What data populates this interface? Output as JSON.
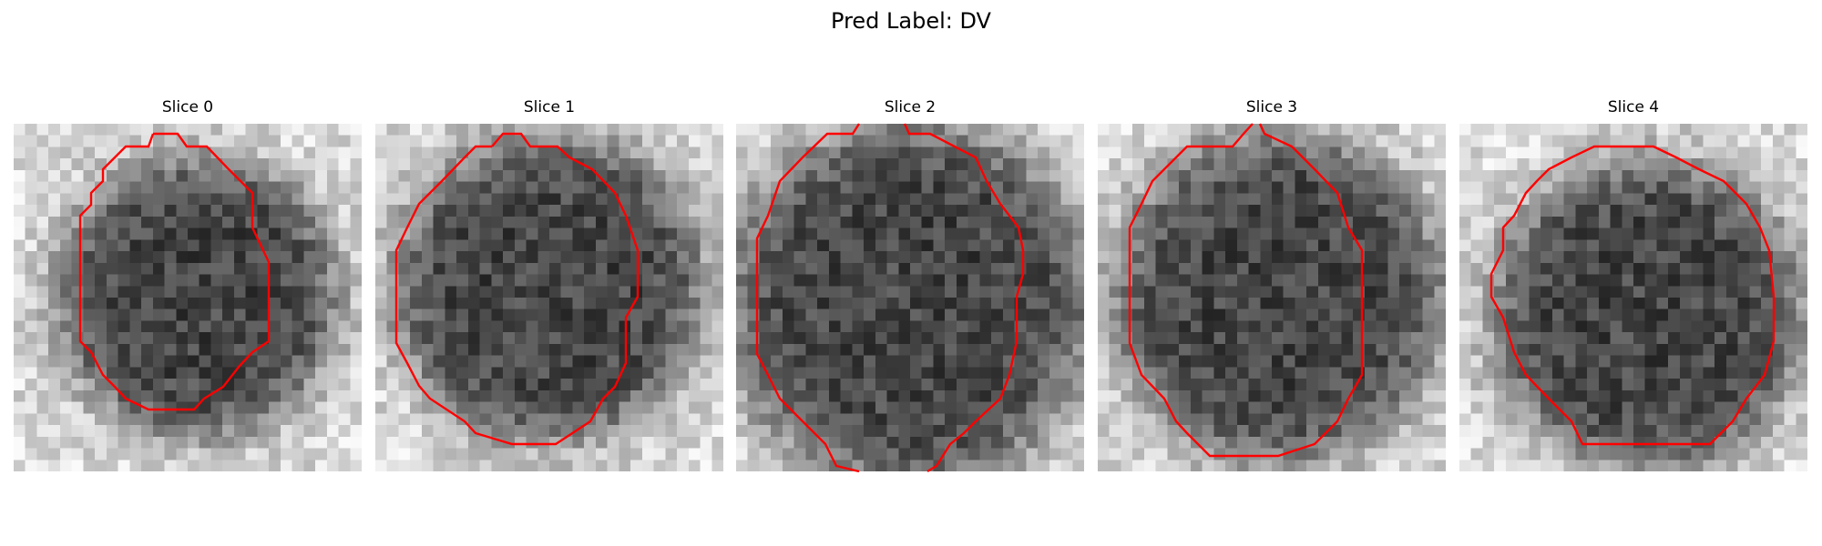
{
  "figure": {
    "title": "Pred Label: DV"
  },
  "contour_color": "#ff0000",
  "panels": [
    {
      "title": "Slice 0"
    },
    {
      "title": "Slice 1"
    },
    {
      "title": "Slice 2"
    },
    {
      "title": "Slice 3"
    },
    {
      "title": "Slice 4"
    }
  ]
}
